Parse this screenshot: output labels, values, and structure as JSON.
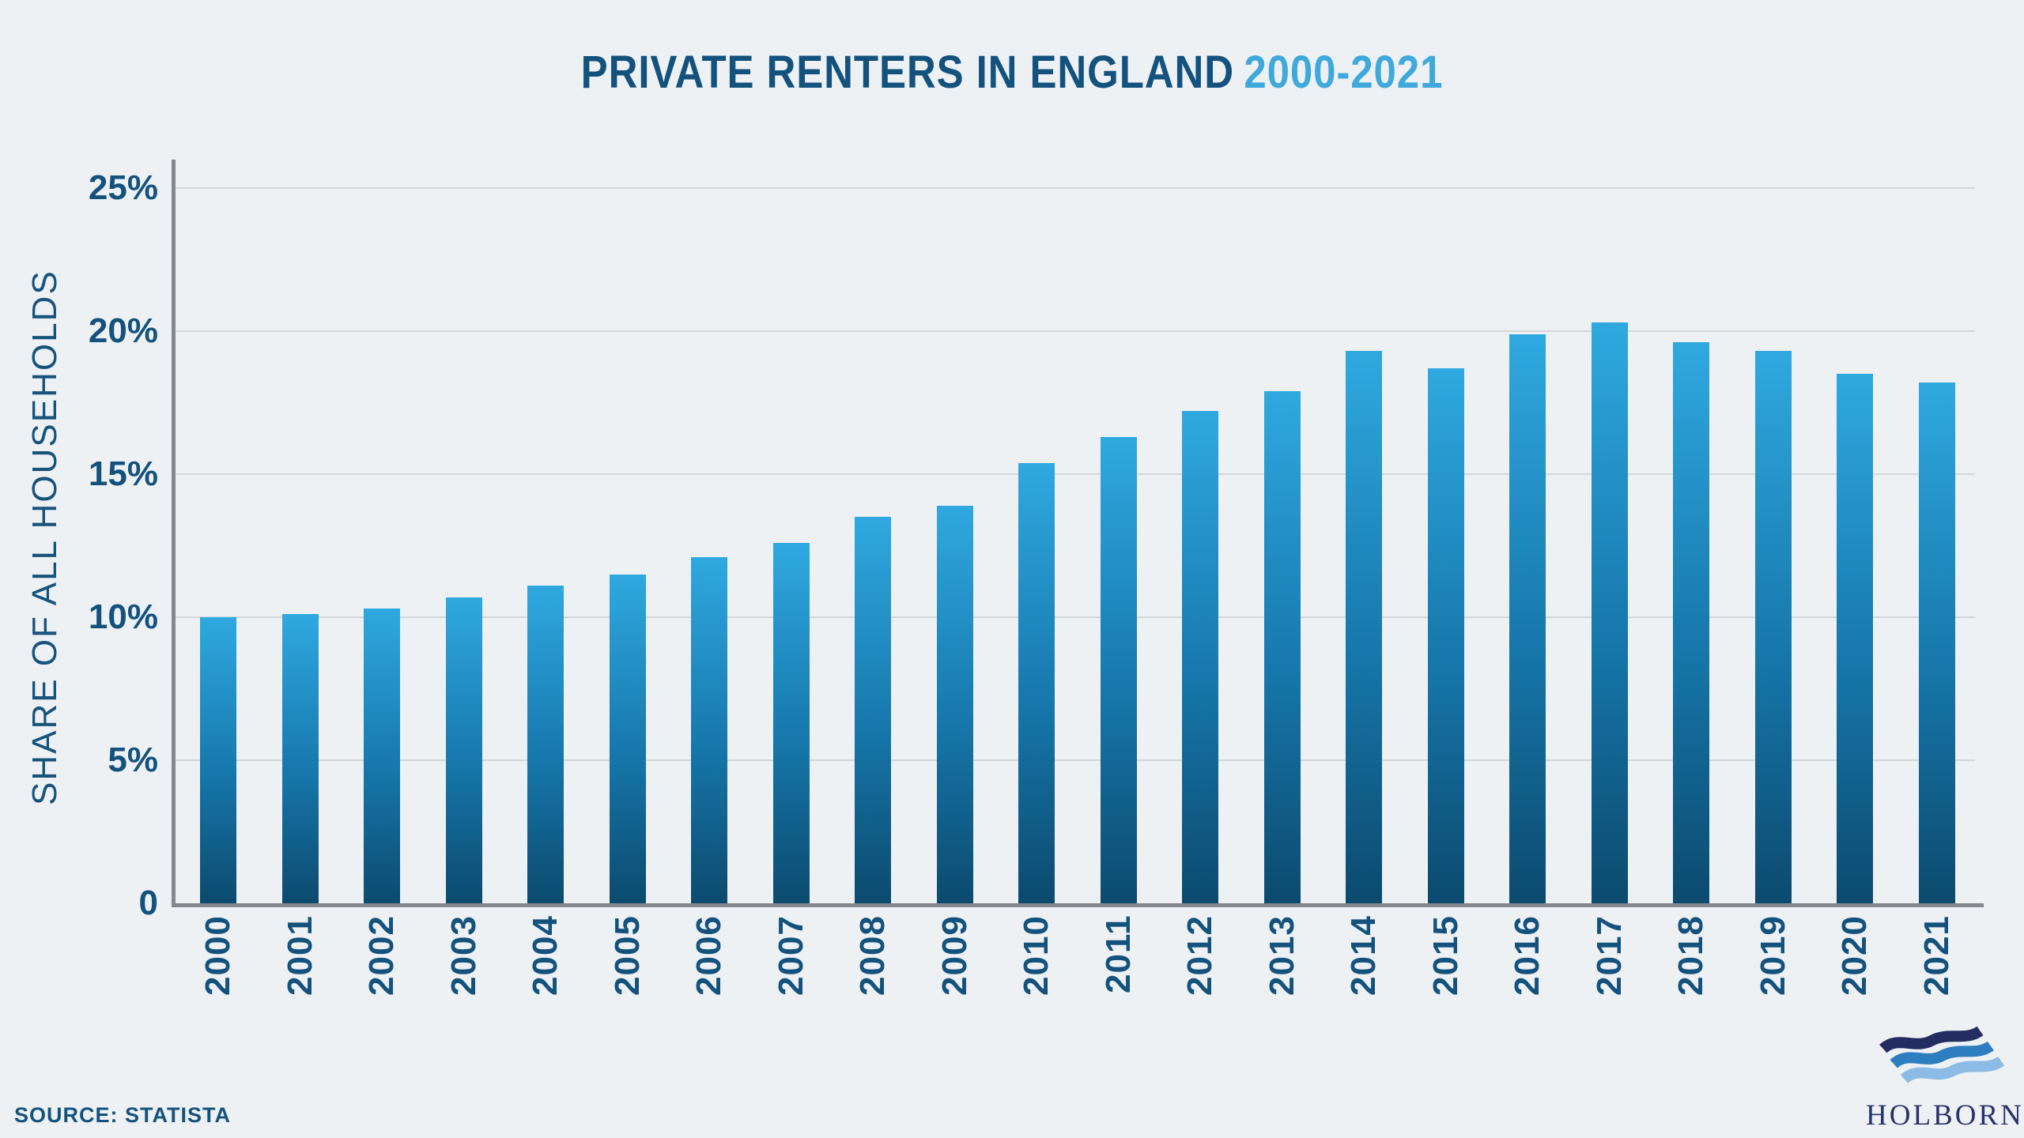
{
  "title": {
    "main": "PRIVATE RENTERS IN ENGLAND",
    "range": "2000-2021"
  },
  "y_axis": {
    "label": "SHARE OF ALL HOUSEHOLDS",
    "tick_suffix": "%"
  },
  "source": {
    "label": "SOURCE: STATISTA"
  },
  "logo": {
    "name": "HOLBORN"
  },
  "colors": {
    "background": "#eef1f3",
    "title_dark": "#14527e",
    "title_light": "#3fa9dc",
    "bar_top": "#2fa9e0",
    "bar_bottom": "#0c4a6e",
    "axis": "#85888c",
    "gridline": "#d3d7da",
    "logo_wave_dark": "#232d62",
    "logo_wave_mid": "#2d7dc1",
    "logo_wave_light": "#8cbce5"
  },
  "chart_data": {
    "type": "bar",
    "title": "PRIVATE RENTERS IN ENGLAND 2000-2021",
    "xlabel": "",
    "ylabel": "SHARE OF ALL HOUSEHOLDS",
    "ylim": [
      0,
      25
    ],
    "yticks": [
      0,
      5,
      10,
      15,
      20,
      25
    ],
    "grid": true,
    "legend": false,
    "categories": [
      "2000",
      "2001",
      "2002",
      "2003",
      "2004",
      "2005",
      "2006",
      "2007",
      "2008",
      "2009",
      "2010",
      "2011",
      "2012",
      "2013",
      "2014",
      "2015",
      "2016",
      "2017",
      "2018",
      "2019",
      "2020",
      "2021"
    ],
    "values": [
      10.0,
      10.1,
      10.3,
      10.7,
      11.1,
      11.5,
      12.1,
      12.6,
      13.5,
      13.9,
      15.4,
      16.3,
      17.2,
      17.9,
      19.3,
      18.7,
      19.9,
      20.3,
      19.6,
      19.3,
      18.5,
      18.2
    ]
  }
}
